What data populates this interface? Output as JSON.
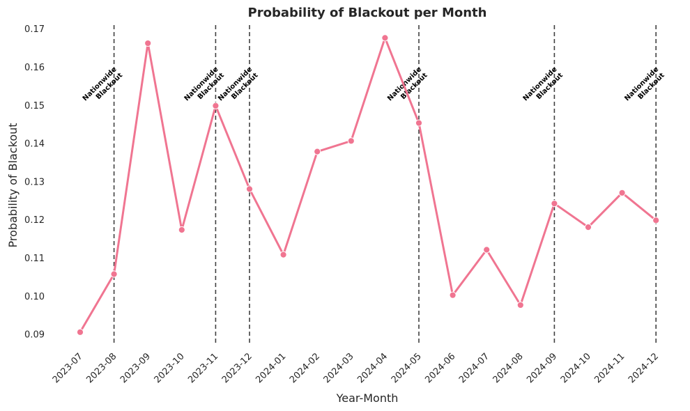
{
  "chart_data": {
    "type": "line",
    "title": "Probability of Blackout per Month",
    "xlabel": "Year-Month",
    "ylabel": "Probability of Blackout",
    "categories": [
      "2023-07",
      "2023-08",
      "2023-09",
      "2023-10",
      "2023-11",
      "2023-12",
      "2024-01",
      "2024-02",
      "2024-03",
      "2024-04",
      "2024-05",
      "2024-06",
      "2024-07",
      "2024-08",
      "2024-09",
      "2024-10",
      "2024-11",
      "2024-12"
    ],
    "values": [
      0.0905,
      0.1057,
      0.1662,
      0.1173,
      0.1498,
      0.128,
      0.1108,
      0.1378,
      0.1406,
      0.1676,
      0.1453,
      0.1002,
      0.1121,
      0.0976,
      0.1242,
      0.118,
      0.127,
      0.1198
    ],
    "yticks": [
      "0.09",
      "0.10",
      "0.11",
      "0.12",
      "0.13",
      "0.14",
      "0.15",
      "0.16",
      "0.17"
    ],
    "ylim": [
      0.087,
      0.1715
    ],
    "grid": false,
    "line_color": "#f07591",
    "event_line_color": "#404040",
    "events": [
      {
        "category": "2023-08",
        "label_line1": "Nationwide",
        "label_line2": "Blackout"
      },
      {
        "category": "2023-11",
        "label_line1": "Nationwide",
        "label_line2": "Blackout"
      },
      {
        "category": "2023-12",
        "label_line1": "Nationwide",
        "label_line2": "Blackout"
      },
      {
        "category": "2024-05",
        "label_line1": "Nationwide",
        "label_line2": "Blackout"
      },
      {
        "category": "2024-09",
        "label_line1": "Nationwide",
        "label_line2": "Blackout"
      },
      {
        "category": "2024-12",
        "label_line1": "Nationwide",
        "label_line2": "Blackout"
      }
    ]
  }
}
